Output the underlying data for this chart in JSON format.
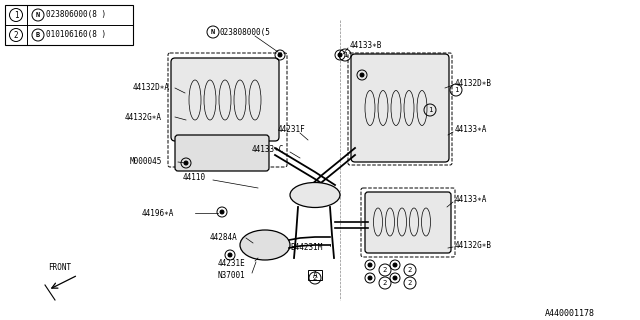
{
  "bg_color": "#ffffff",
  "line_color": "#000000",
  "text_color": "#000000",
  "diagram_number": "A440001178",
  "figsize": [
    6.4,
    3.2
  ],
  "dpi": 100,
  "legend": [
    {
      "num": "1",
      "symbol": "N",
      "code": "023806000(8 )"
    },
    {
      "num": "2",
      "symbol": "B",
      "code": "010106160(8 )"
    }
  ]
}
